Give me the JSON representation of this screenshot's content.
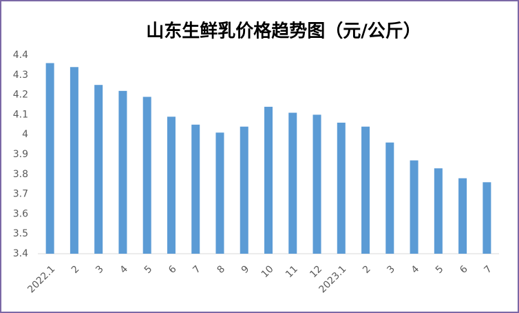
{
  "chart_data": {
    "type": "bar",
    "title": "山东生鲜乳价格趋势图（元/公斤）",
    "categories": [
      "2022.1",
      "2",
      "3",
      "4",
      "5",
      "6",
      "7",
      "8",
      "9",
      "10",
      "11",
      "12",
      "2023.1",
      "2",
      "3",
      "4",
      "5",
      "6",
      "7"
    ],
    "values": [
      4.36,
      4.34,
      4.25,
      4.22,
      4.19,
      4.09,
      4.05,
      4.01,
      4.04,
      4.14,
      4.11,
      4.1,
      4.06,
      4.04,
      3.96,
      3.87,
      3.83,
      3.78,
      3.76
    ],
    "color": "#5b9bd5",
    "ylim": [
      3.4,
      4.4
    ],
    "yticks": [
      3.4,
      3.5,
      3.6,
      3.7,
      3.8,
      3.9,
      4,
      4.1,
      4.2,
      4.3,
      4.4
    ],
    "grid": false
  }
}
